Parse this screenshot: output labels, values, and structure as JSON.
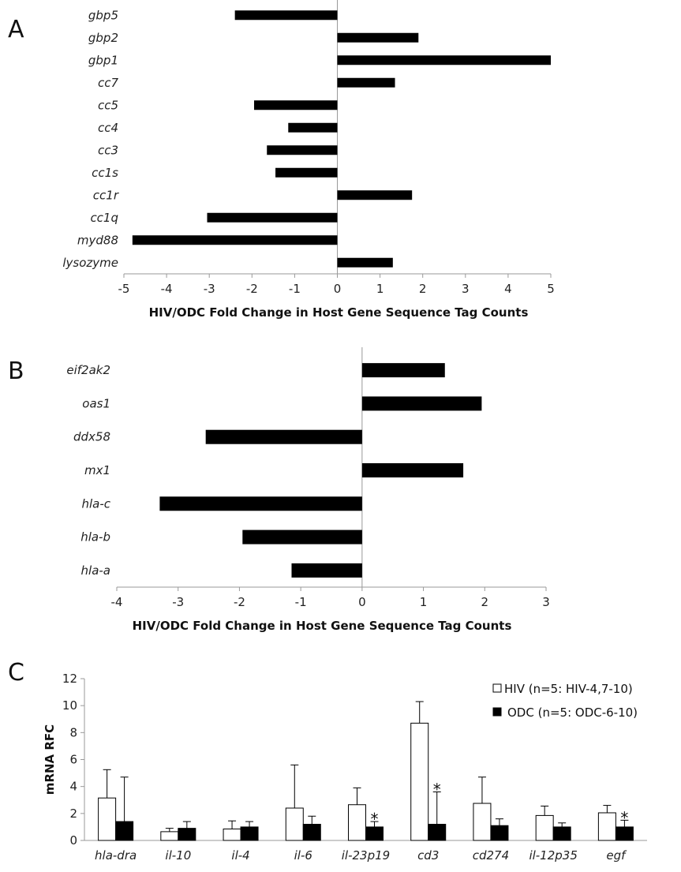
{
  "chart_data": [
    {
      "panel": "A",
      "type": "bar",
      "orientation": "horizontal",
      "categories": [
        "gbp5",
        "gbp2",
        "gbp1",
        "cc7",
        "cc5",
        "cc4",
        "cc3",
        "cc1s",
        "cc1r",
        "cc1q",
        "myd88",
        "lysozyme"
      ],
      "values": [
        -2.4,
        1.9,
        5.0,
        1.35,
        -1.95,
        -1.15,
        -1.65,
        -1.45,
        1.75,
        -3.05,
        -4.8,
        1.3
      ],
      "xlabel": "HIV/ODC Fold Change in Host Gene Sequence Tag Counts",
      "xlim": [
        -5,
        5
      ],
      "xticks": [
        "-5",
        "-4",
        "-3",
        "-2",
        "-1",
        "0",
        "1",
        "2",
        "3",
        "4",
        "5"
      ],
      "grid": false,
      "bar_color": "#000000"
    },
    {
      "panel": "B",
      "type": "bar",
      "orientation": "horizontal",
      "categories": [
        "eif2ak2",
        "oas1",
        "ddx58",
        "mx1",
        "hla-c",
        "hla-b",
        "hla-a"
      ],
      "values": [
        1.35,
        1.95,
        -2.55,
        1.65,
        -3.3,
        -1.95,
        -1.15
      ],
      "xlabel": "HIV/ODC Fold Change in Host Gene Sequence Tag Counts",
      "xlim": [
        -4,
        3
      ],
      "xticks": [
        "-4",
        "-3",
        "-2",
        "-1",
        "0",
        "1",
        "2",
        "3"
      ],
      "grid": false,
      "bar_color": "#000000"
    },
    {
      "panel": "C",
      "type": "bar",
      "orientation": "vertical",
      "categories": [
        "hla-dra",
        "il-10",
        "il-4",
        "il-6",
        "il-23p19",
        "cd3",
        "cd274",
        "il-12p35",
        "egf"
      ],
      "series": [
        {
          "name": "HIV (n=5: HIV-4,7-10)",
          "fill": "#ffffff",
          "values": [
            3.15,
            0.65,
            0.85,
            2.4,
            2.65,
            8.7,
            2.75,
            1.85,
            2.05
          ],
          "error": [
            2.1,
            0.25,
            0.6,
            3.2,
            1.25,
            1.6,
            1.95,
            0.7,
            0.55
          ]
        },
        {
          "name": "ODC (n=5: ODC-6-10)",
          "fill": "#000000",
          "values": [
            1.4,
            0.9,
            1.0,
            1.2,
            1.0,
            1.2,
            1.1,
            1.0,
            1.0
          ],
          "error": [
            3.3,
            0.5,
            0.4,
            0.6,
            0.4,
            2.4,
            0.5,
            0.3,
            0.5
          ]
        }
      ],
      "significant": [
        false,
        false,
        false,
        false,
        true,
        true,
        false,
        false,
        true
      ],
      "significance_marker": "*",
      "ylabel": "mRNA RFC",
      "ylim": [
        0,
        12
      ],
      "yticks": [
        "0",
        "2",
        "4",
        "6",
        "8",
        "10",
        "12"
      ],
      "legend_position": "top-right",
      "grid": false
    }
  ]
}
